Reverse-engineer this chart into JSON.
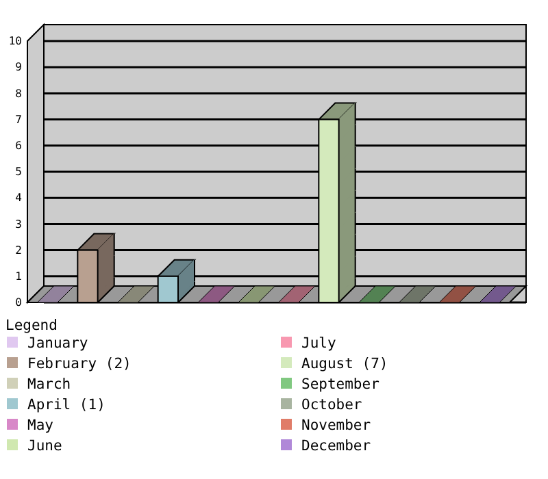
{
  "chart_data": {
    "type": "bar",
    "legend_title": "Legend",
    "categories": [
      null,
      null,
      null,
      null,
      null,
      null,
      null,
      null,
      null,
      null,
      null,
      null
    ],
    "series": [
      {
        "name": "January",
        "color": "#e0c8f0",
        "values": [
          0,
          null,
          null,
          null,
          null,
          null,
          null,
          null,
          null,
          null,
          null,
          null
        ]
      },
      {
        "name": "February (2)",
        "color": "#b8a090",
        "values": [
          null,
          2,
          null,
          null,
          null,
          null,
          null,
          null,
          null,
          null,
          null,
          null
        ]
      },
      {
        "name": "March",
        "color": "#d0d0b8",
        "values": [
          null,
          null,
          0,
          null,
          null,
          null,
          null,
          null,
          null,
          null,
          null,
          null
        ]
      },
      {
        "name": "April (1)",
        "color": "#a0c8d0",
        "values": [
          null,
          null,
          null,
          1,
          null,
          null,
          null,
          null,
          null,
          null,
          null,
          null
        ]
      },
      {
        "name": "May",
        "color": "#d888c8",
        "values": [
          null,
          null,
          null,
          null,
          0,
          null,
          null,
          null,
          null,
          null,
          null,
          null
        ]
      },
      {
        "name": "June",
        "color": "#d0e8b0",
        "values": [
          null,
          null,
          null,
          null,
          null,
          0,
          null,
          null,
          null,
          null,
          null,
          null
        ]
      },
      {
        "name": "July",
        "color": "#f898b0",
        "values": [
          null,
          null,
          null,
          null,
          null,
          null,
          0,
          null,
          null,
          null,
          null,
          null
        ]
      },
      {
        "name": "August (7)",
        "color": "#d4eabc",
        "values": [
          null,
          null,
          null,
          null,
          null,
          null,
          null,
          7,
          null,
          null,
          null,
          null
        ]
      },
      {
        "name": "September",
        "color": "#80c880",
        "values": [
          null,
          null,
          null,
          null,
          null,
          null,
          null,
          null,
          0,
          null,
          null,
          null
        ]
      },
      {
        "name": "October",
        "color": "#a8b4a0",
        "values": [
          null,
          null,
          null,
          null,
          null,
          null,
          null,
          null,
          null,
          0,
          null,
          null
        ]
      },
      {
        "name": "November",
        "color": "#e07c68",
        "values": [
          null,
          null,
          null,
          null,
          null,
          null,
          null,
          null,
          null,
          null,
          0,
          null
        ]
      },
      {
        "name": "December",
        "color": "#b088d8",
        "values": [
          null,
          null,
          null,
          null,
          null,
          null,
          null,
          null,
          null,
          null,
          null,
          0
        ]
      }
    ],
    "ylim": [
      0,
      10
    ],
    "yticks": [
      0,
      1,
      2,
      3,
      4,
      5,
      6,
      7,
      8,
      9,
      10
    ],
    "grid": "y",
    "tick_labels": "y",
    "legend": "bottom"
  }
}
